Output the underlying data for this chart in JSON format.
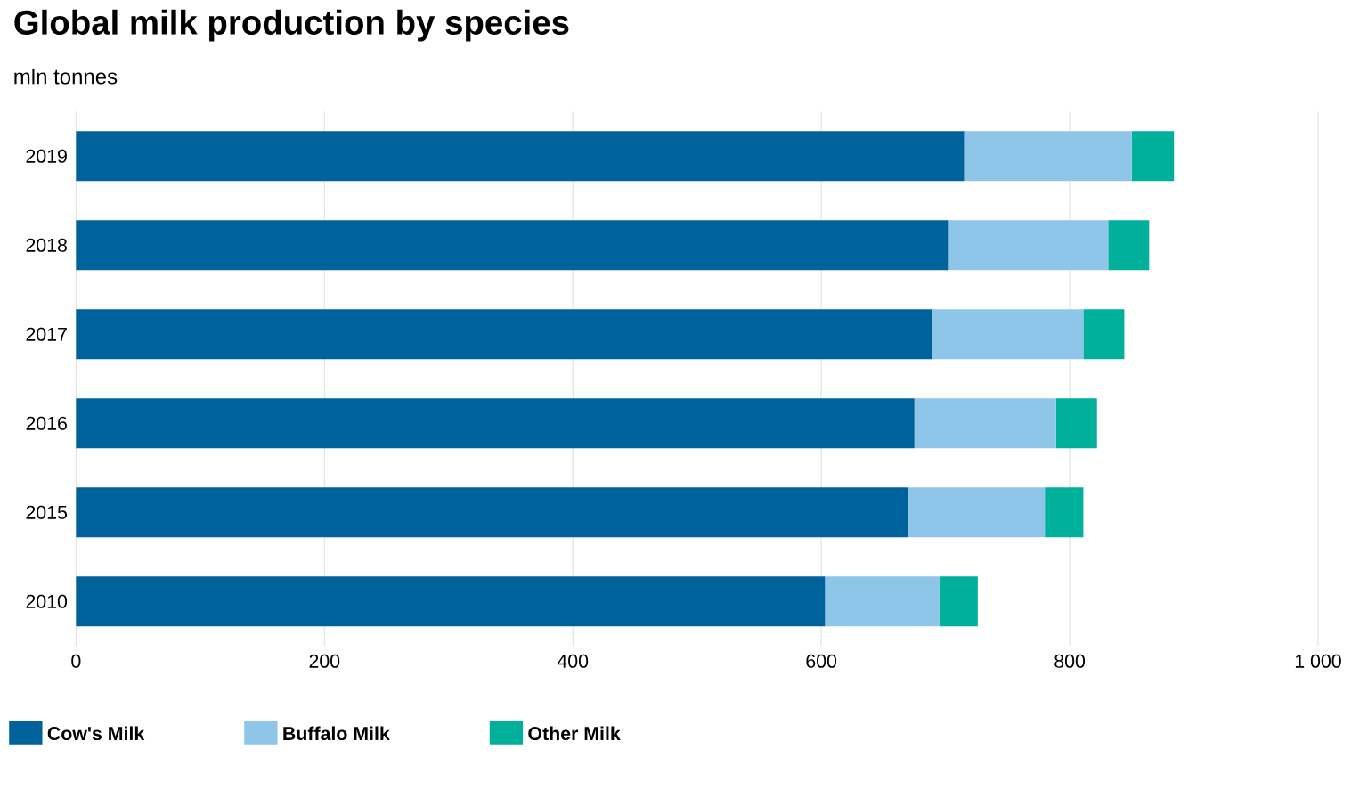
{
  "chart_data": {
    "type": "bar",
    "orientation": "horizontal",
    "stacked": true,
    "title": "Global milk production by species",
    "subtitle": "mln tonnes",
    "categories": [
      "2019",
      "2018",
      "2017",
      "2016",
      "2015",
      "2010"
    ],
    "series": [
      {
        "name": "Cow's Milk",
        "color": "#00629b",
        "values": [
          715,
          702,
          689,
          675,
          670,
          603
        ]
      },
      {
        "name": "Buffalo Milk",
        "color": "#8ec6ea",
        "values": [
          135,
          129,
          122,
          114,
          110,
          93
        ]
      },
      {
        "name": "Other Milk",
        "color": "#00b09b",
        "values": [
          34,
          33,
          33,
          33,
          31,
          30
        ]
      }
    ],
    "xlim": [
      0,
      1000
    ],
    "xticks": [
      0,
      200,
      400,
      600,
      800,
      {
        "value": 1000,
        "label": "1 000"
      }
    ],
    "grid": "x",
    "legend": "bottom"
  }
}
